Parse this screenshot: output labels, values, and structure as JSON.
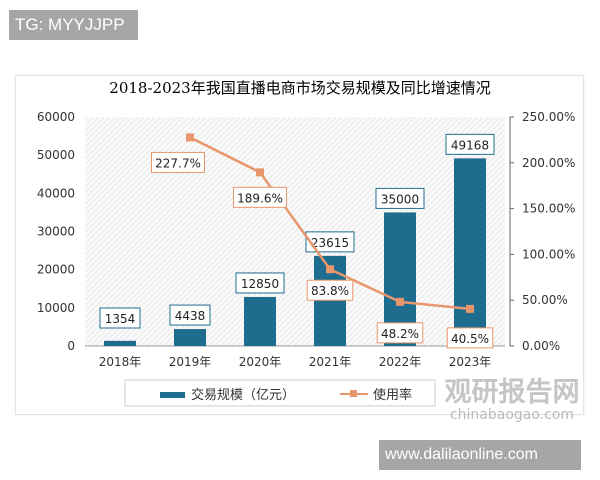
{
  "header_tag": "TG: MYYJJPP",
  "footer_tag": "www.dalilaonline.com",
  "watermark": {
    "cn": "观研报告网",
    "en": "chinabaogao.com"
  },
  "colors": {
    "bar": "#1f6d8e",
    "line": "#e8966b",
    "title": "#1f6d8e"
  },
  "chart_data": {
    "type": "bar+line",
    "title": "2018-2023年我国直播电商市场交易规模及同比增速情况",
    "categories": [
      "2018年",
      "2019年",
      "2020年",
      "2021年",
      "2022年",
      "2023年"
    ],
    "series": [
      {
        "name": "交易规模（亿元）",
        "type": "bar",
        "axis": "left",
        "values": [
          1354,
          4438,
          12850,
          23615,
          35000,
          49168
        ],
        "labels": [
          "1354",
          "4438",
          "12850",
          "23615",
          "35000",
          "49168"
        ]
      },
      {
        "name": "使用率",
        "type": "line",
        "axis": "right",
        "values": [
          null,
          227.7,
          189.6,
          83.8,
          48.2,
          40.5
        ],
        "labels": [
          "",
          "227.7%",
          "189.6%",
          "83.8%",
          "48.2%",
          "40.5%"
        ]
      }
    ],
    "left_axis": {
      "range": [
        0,
        60000
      ],
      "ticks": [
        "0",
        "10000",
        "20000",
        "30000",
        "40000",
        "50000",
        "60000"
      ]
    },
    "right_axis": {
      "range": [
        0,
        250
      ],
      "ticks": [
        "0.00%",
        "50.00%",
        "100.00%",
        "150.00%",
        "200.00%",
        "250.00%"
      ]
    },
    "legend": "bottom",
    "grid": false
  }
}
